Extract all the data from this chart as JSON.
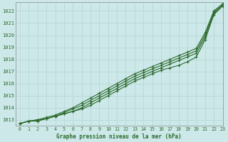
{
  "title": "Graphe pression niveau de la mer (hPa)",
  "bg_color": "#cce8e8",
  "grid_color": "#d0e8e8",
  "line_color": "#2d6a2d",
  "xlim": [
    -0.5,
    23
  ],
  "ylim": [
    1012.5,
    1022.7
  ],
  "yticks": [
    1013,
    1014,
    1015,
    1016,
    1017,
    1018,
    1019,
    1020,
    1021,
    1022
  ],
  "xticks": [
    0,
    1,
    2,
    3,
    4,
    5,
    6,
    7,
    8,
    9,
    10,
    11,
    12,
    13,
    14,
    15,
    16,
    17,
    18,
    19,
    20,
    21,
    22,
    23
  ],
  "series": [
    [
      1012.7,
      1012.9,
      1012.9,
      1013.1,
      1013.3,
      1013.5,
      1013.7,
      1013.9,
      1014.2,
      1014.6,
      1015.0,
      1015.4,
      1015.8,
      1016.2,
      1016.5,
      1016.8,
      1017.1,
      1017.3,
      1017.5,
      1017.8,
      1018.2,
      1019.6,
      1021.7,
      1022.4
    ],
    [
      1012.7,
      1012.9,
      1013.0,
      1013.1,
      1013.3,
      1013.5,
      1013.7,
      1014.0,
      1014.4,
      1014.8,
      1015.2,
      1015.6,
      1016.0,
      1016.4,
      1016.7,
      1017.0,
      1017.3,
      1017.6,
      1017.9,
      1018.2,
      1018.5,
      1019.8,
      1021.8,
      1022.5
    ],
    [
      1012.7,
      1012.9,
      1013.0,
      1013.1,
      1013.3,
      1013.6,
      1013.9,
      1014.2,
      1014.6,
      1015.0,
      1015.4,
      1015.8,
      1016.2,
      1016.6,
      1016.9,
      1017.2,
      1017.5,
      1017.8,
      1018.1,
      1018.4,
      1018.7,
      1020.0,
      1021.9,
      1022.5
    ],
    [
      1012.7,
      1012.9,
      1013.0,
      1013.2,
      1013.4,
      1013.7,
      1014.0,
      1014.4,
      1014.8,
      1015.2,
      1015.6,
      1016.0,
      1016.4,
      1016.8,
      1017.1,
      1017.4,
      1017.7,
      1018.0,
      1018.3,
      1018.6,
      1018.9,
      1020.2,
      1022.0,
      1022.6
    ]
  ]
}
